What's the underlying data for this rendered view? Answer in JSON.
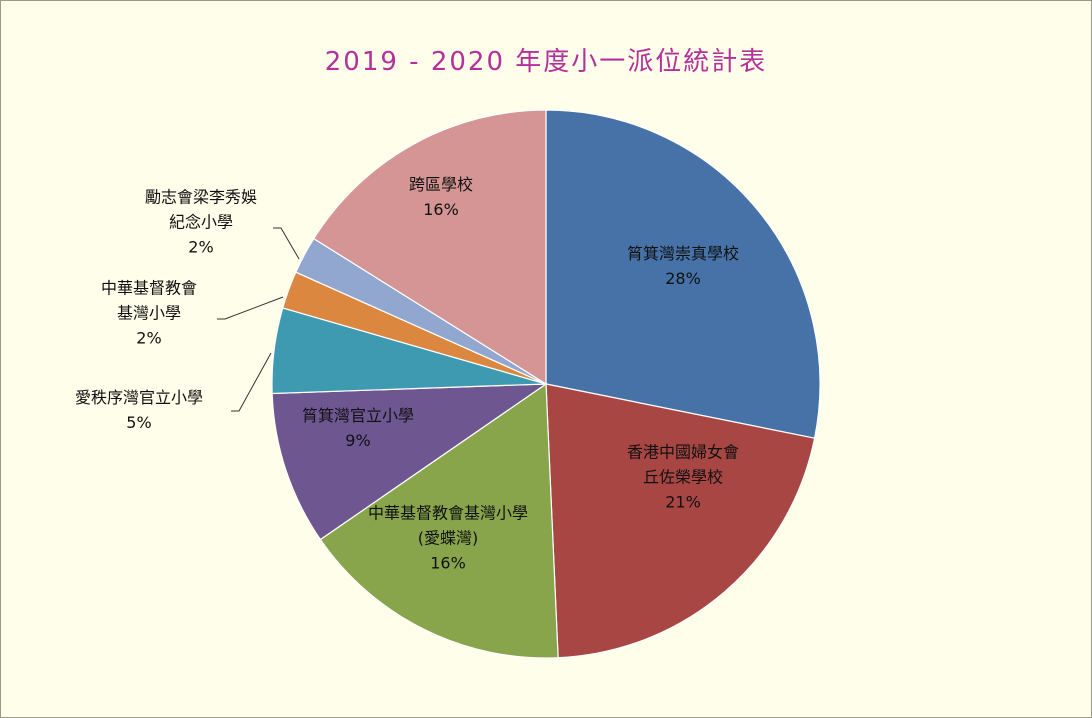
{
  "chart_data": {
    "type": "pie",
    "title": "2019 - 2020 年度小一派位統計表",
    "slices": [
      {
        "label_lines": [
          "筲箕灣崇真學校"
        ],
        "pct_label": "28%",
        "value": 28,
        "color": "#4672a8"
      },
      {
        "label_lines": [
          "香港中國婦女會",
          "丘佐榮學校"
        ],
        "pct_label": "21%",
        "value": 21,
        "color": "#a84644"
      },
      {
        "label_lines": [
          "中華基督教會基灣小學",
          "(愛蝶灣)"
        ],
        "pct_label": "16%",
        "value": 16,
        "color": "#88a54c"
      },
      {
        "label_lines": [
          "筲箕灣官立小學"
        ],
        "pct_label": "9%",
        "value": 9,
        "color": "#6e5690"
      },
      {
        "label_lines": [
          "愛秩序灣官立小學"
        ],
        "pct_label": "5%",
        "value": 5,
        "color": "#3e9ab0"
      },
      {
        "label_lines": [
          "中華基督教會",
          "基灣小學"
        ],
        "pct_label": "2%",
        "value": 2.2,
        "color": "#db8740"
      },
      {
        "label_lines": [
          "勵志會梁李秀娛",
          "紀念小學"
        ],
        "pct_label": "2%",
        "value": 2.2,
        "color": "#92a7d0"
      },
      {
        "label_lines": [
          "跨區學校"
        ],
        "pct_label": "16%",
        "value": 16,
        "color": "#d49594"
      }
    ]
  }
}
